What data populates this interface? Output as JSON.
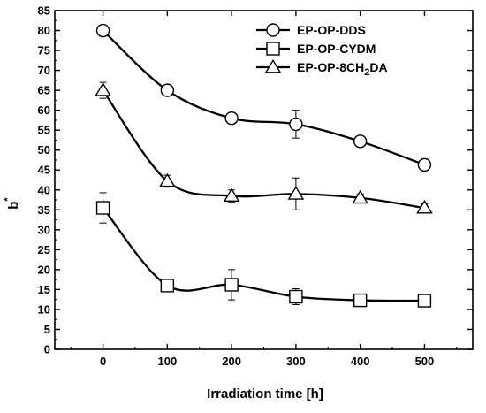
{
  "chart_data": {
    "type": "line",
    "title": "",
    "xlabel": "Irradiation time [h]",
    "ylabel_main": "b",
    "ylabel_sup": "*",
    "x": [
      0,
      100,
      200,
      300,
      400,
      500
    ],
    "xlim": [
      -75,
      575
    ],
    "ylim": [
      0,
      85
    ],
    "xticks": [
      0,
      100,
      200,
      300,
      400,
      500
    ],
    "yticks": [
      0,
      5,
      10,
      15,
      20,
      25,
      30,
      35,
      40,
      45,
      50,
      55,
      60,
      65,
      70,
      75,
      80,
      85
    ],
    "legend_position": "top-right",
    "grid": false,
    "series": [
      {
        "name": "EP-OP-DDS",
        "legend_parts": [
          {
            "t": "EP-OP-DDS",
            "sub": false
          }
        ],
        "marker": "circle",
        "values": [
          80,
          65,
          58,
          56.5,
          52.2,
          46.3
        ],
        "errors": [
          0.8,
          0.8,
          0.8,
          3.5,
          0.8,
          1.0
        ]
      },
      {
        "name": "EP-OP-CYDM",
        "legend_parts": [
          {
            "t": "EP-OP-CYDM",
            "sub": false
          }
        ],
        "marker": "square",
        "values": [
          35.5,
          16,
          16.2,
          13.2,
          12.3,
          12.2
        ],
        "errors": [
          3.8,
          0.8,
          3.8,
          2.0,
          1.0,
          0.8
        ]
      },
      {
        "name": "EP-OP-8CH2DA",
        "legend_parts": [
          {
            "t": "EP-OP-8CH",
            "sub": false
          },
          {
            "t": "2",
            "sub": true
          },
          {
            "t": "DA",
            "sub": false
          }
        ],
        "marker": "triangle",
        "values": [
          65,
          42.2,
          38.5,
          39,
          38,
          35.5
        ],
        "errors": [
          2.0,
          1.5,
          1.5,
          4.0,
          1.0,
          1.0
        ]
      }
    ]
  }
}
